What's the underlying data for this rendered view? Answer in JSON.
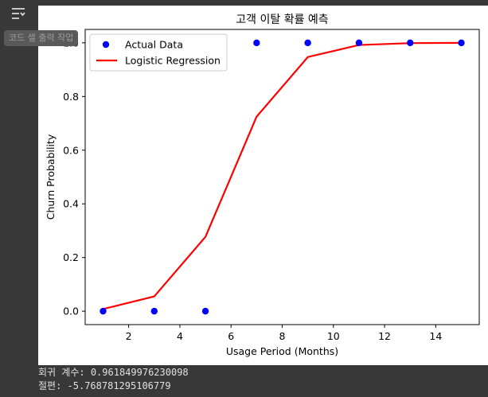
{
  "toolbar": {
    "output_toggle_icon": "output-collapse-icon",
    "tooltip": "코드 셀 출력 작업"
  },
  "console": {
    "lines": [
      "회귀 계수: 0.961849976230098",
      "절편: -5.768781295106779"
    ]
  },
  "chart_data": {
    "type": "scatter",
    "title": "고객 이탈 확률 예측",
    "xlabel": "Usage Period (Months)",
    "ylabel": "Churn Probability",
    "xlim": [
      0.3,
      15.7
    ],
    "ylim": [
      -0.05,
      1.05
    ],
    "xticks": [
      2,
      4,
      6,
      8,
      10,
      12,
      14
    ],
    "yticks": [
      0.0,
      0.2,
      0.4,
      0.6,
      0.8,
      1.0
    ],
    "xtick_labels": [
      "2",
      "4",
      "6",
      "8",
      "10",
      "12",
      "14"
    ],
    "ytick_labels": [
      "0.0",
      "0.2",
      "0.4",
      "0.6",
      "0.8",
      "1.0"
    ],
    "legend_position": "top-left",
    "grid": false,
    "series": [
      {
        "name": "Actual Data",
        "kind": "scatter",
        "color": "#0000ff",
        "x": [
          1,
          3,
          5,
          7,
          9,
          11,
          13,
          15
        ],
        "y": [
          0,
          0,
          0,
          1,
          1,
          1,
          1,
          1
        ]
      },
      {
        "name": "Logistic Regression",
        "kind": "line",
        "color": "#ff0000",
        "x": [
          1,
          3,
          5,
          7,
          9,
          11,
          13,
          15
        ],
        "y": [
          0.008,
          0.055,
          0.277,
          0.725,
          0.947,
          0.992,
          0.999,
          1.0
        ]
      }
    ]
  }
}
